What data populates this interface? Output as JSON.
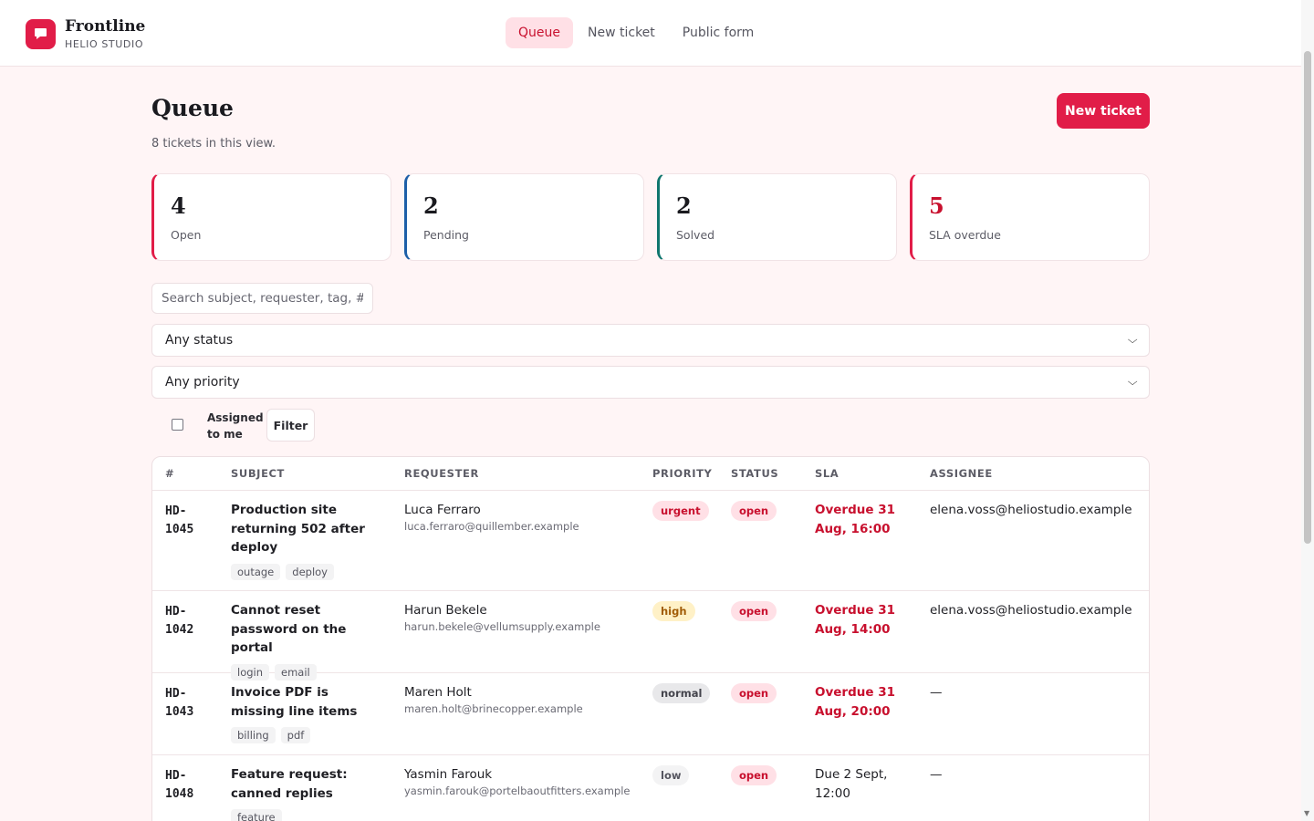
{
  "app": {
    "name": "Frontline",
    "workspace": "HELIO STUDIO"
  },
  "nav": {
    "tabs": [
      {
        "label": "Queue"
      },
      {
        "label": "New ticket"
      },
      {
        "label": "Public form"
      }
    ]
  },
  "page": {
    "title": "Queue",
    "subtitle": "8 tickets in this view.",
    "new_ticket_label": "New ticket"
  },
  "stats": [
    {
      "value": "4",
      "label": "Open"
    },
    {
      "value": "2",
      "label": "Pending"
    },
    {
      "value": "2",
      "label": "Solved"
    },
    {
      "value": "5",
      "label": "SLA overdue"
    }
  ],
  "filters": {
    "search_placeholder": "Search subject, requester, tag, #",
    "status_value": "Any status",
    "priority_value": "Any priority",
    "assigned_label": "Assigned to me",
    "assigned_checked": false,
    "filter_label": "Filter"
  },
  "table": {
    "columns": [
      "#",
      "SUBJECT",
      "REQUESTER",
      "PRIORITY",
      "STATUS",
      "SLA",
      "ASSIGNEE"
    ],
    "rows": [
      {
        "id": "HD-1045",
        "subject": "Production site returning 502 after deploy",
        "tags": [
          "outage",
          "deploy"
        ],
        "requester": "Luca Ferraro",
        "email": "luca.ferraro@quillember.example",
        "priority": "urgent",
        "status": "open",
        "sla": "Overdue 31 Aug, 16:00",
        "sla_overdue": true,
        "assignee": "elena.voss@heliostudio.example"
      },
      {
        "id": "HD-1042",
        "subject": "Cannot reset password on the portal",
        "tags": [
          "login",
          "email"
        ],
        "requester": "Harun Bekele",
        "email": "harun.bekele@vellumsupply.example",
        "priority": "high",
        "status": "open",
        "sla": "Overdue 31 Aug, 14:00",
        "sla_overdue": true,
        "assignee": "elena.voss@heliostudio.example"
      },
      {
        "id": "HD-1043",
        "subject": "Invoice PDF is missing line items",
        "tags": [
          "billing",
          "pdf"
        ],
        "requester": "Maren Holt",
        "email": "maren.holt@brinecopper.example",
        "priority": "normal",
        "status": "open",
        "sla": "Overdue 31 Aug, 20:00",
        "sla_overdue": true,
        "assignee": "—"
      },
      {
        "id": "HD-1048",
        "subject": "Feature request: canned replies",
        "tags": [
          "feature"
        ],
        "requester": "Yasmin Farouk",
        "email": "yasmin.farouk@portelbaoutfitters.example",
        "priority": "low",
        "status": "open",
        "sla": "Due 2 Sept, 12:00",
        "sla_overdue": false,
        "assignee": "—"
      }
    ]
  }
}
